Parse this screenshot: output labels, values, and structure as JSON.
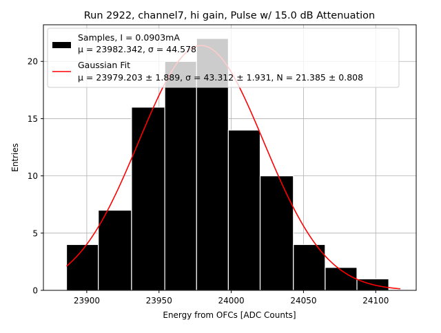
{
  "chart_data": {
    "type": "bar",
    "title": "Run 2922, channel7, hi gain, Pulse w/ 15.0 dB Attenuation",
    "xlabel": "Energy from OFCs [ADC Counts]",
    "ylabel": "Entries",
    "xlim": [
      23870,
      24128
    ],
    "ylim": [
      0,
      23.2
    ],
    "grid": true,
    "legend_position": "top-left",
    "x_ticks": [
      23900,
      23950,
      24000,
      24050,
      24100
    ],
    "y_ticks": [
      0,
      5,
      10,
      15,
      20
    ],
    "bins": [
      {
        "x0": 23886,
        "x1": 23908,
        "count": 4
      },
      {
        "x0": 23908,
        "x1": 23931,
        "count": 7
      },
      {
        "x0": 23931,
        "x1": 23954,
        "count": 16
      },
      {
        "x0": 23954,
        "x1": 23976,
        "count": 20
      },
      {
        "x0": 23976,
        "x1": 23998,
        "count": 22
      },
      {
        "x0": 23998,
        "x1": 24020,
        "count": 14
      },
      {
        "x0": 24020,
        "x1": 24043,
        "count": 10
      },
      {
        "x0": 24043,
        "x1": 24065,
        "count": 4
      },
      {
        "x0": 24065,
        "x1": 24087,
        "count": 2
      },
      {
        "x0": 24087,
        "x1": 24109,
        "count": 1
      }
    ],
    "fit": {
      "mu": 23979.203,
      "sigma": 43.312,
      "peak": 21.385,
      "x_range": [
        23886,
        24117
      ]
    },
    "series": [
      {
        "name": "Samples, I = 0.0903mA",
        "stats": "μ = 23982.342, σ = 44.578",
        "color": "#000000"
      },
      {
        "name": "Gaussian Fit",
        "stats": "μ = 23979.203 ± 1.889, σ = 43.312 ± 1.931, N = 21.385 ± 0.808",
        "color": "#ff0000"
      }
    ]
  }
}
